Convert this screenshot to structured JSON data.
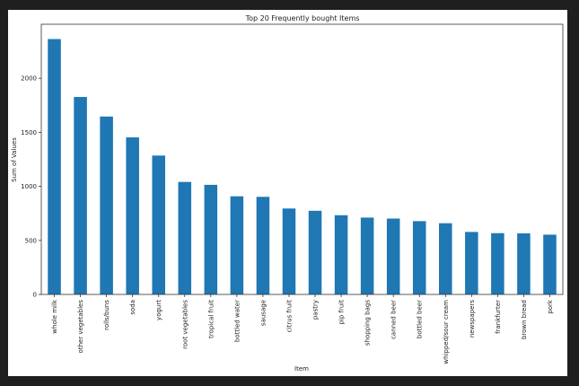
{
  "chart_data": {
    "type": "bar",
    "title": "Top 20 Frequently bought Items",
    "xlabel": "Item",
    "ylabel": "Sum of Values",
    "ylim": [
      0,
      2500
    ],
    "yticks": [
      0,
      500,
      1000,
      1500,
      2000
    ],
    "grid": false,
    "legend": "none",
    "bar_color": "#1f77b4",
    "categories": [
      "whole milk",
      "other vegetables",
      "rolls/buns",
      "soda",
      "yogurt",
      "root vegetables",
      "tropical fruit",
      "bottled water",
      "sausage",
      "citrus fruit",
      "pastry",
      "pip fruit",
      "shopping bags",
      "canned beer",
      "bottled beer",
      "whipped/sour cream",
      "newspapers",
      "frankfurter",
      "brown bread",
      "pork"
    ],
    "values": [
      2363,
      1827,
      1646,
      1453,
      1285,
      1041,
      1014,
      908,
      903,
      795,
      774,
      733,
      711,
      702,
      678,
      659,
      578,
      567,
      565,
      553
    ]
  }
}
